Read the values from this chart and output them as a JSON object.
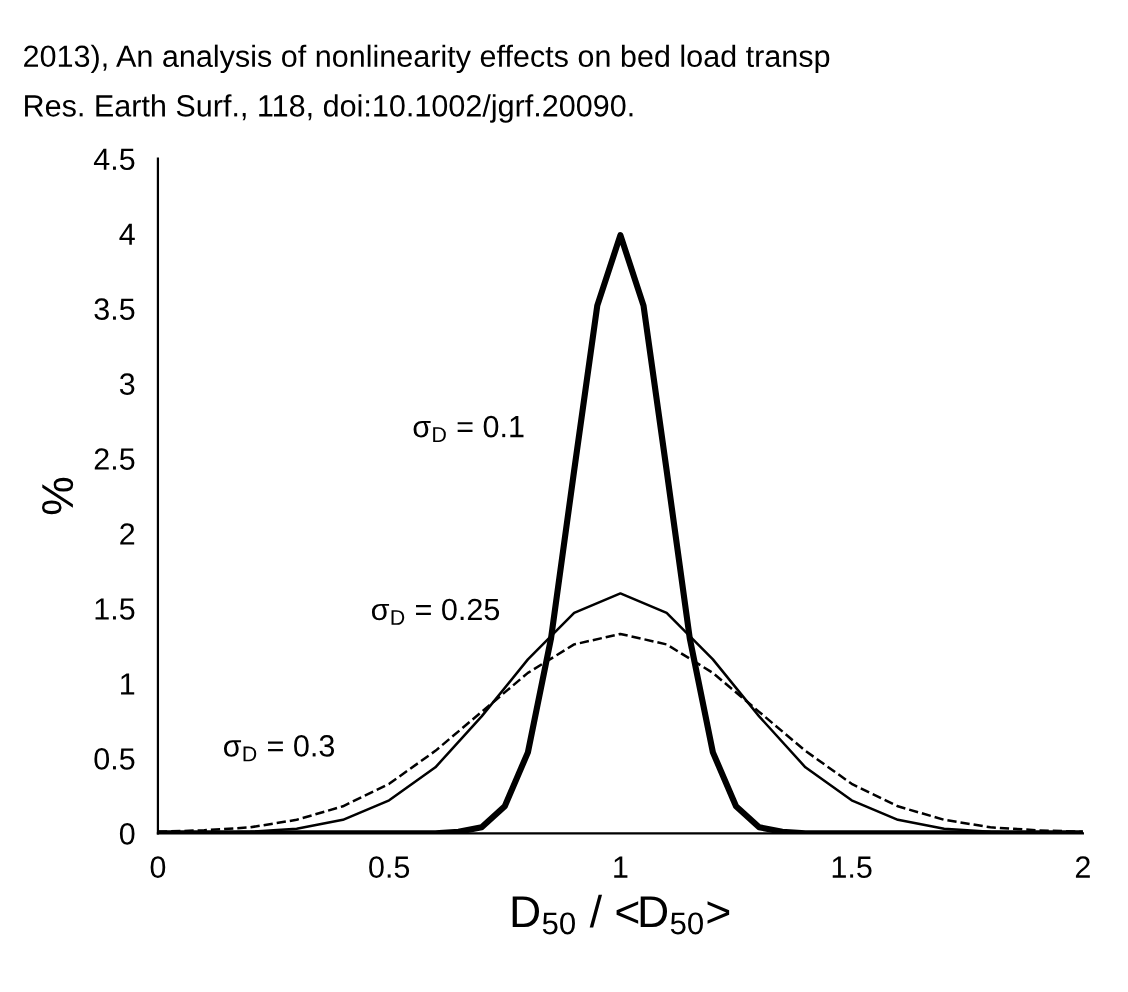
{
  "chart_data": {
    "type": "line",
    "xlabel": "D$_{50}$ / <D$_{50}$>",
    "ylabel": "%",
    "xlim": [
      0,
      2
    ],
    "xticks": [
      0,
      0.5,
      1,
      1.5,
      2
    ],
    "ylim": [
      0,
      4.5
    ],
    "yticks": [
      0,
      0.5,
      1,
      1.5,
      2,
      2.5,
      3,
      3.5,
      4,
      4.5
    ],
    "grid": false,
    "marker": "none",
    "series": [
      {
        "name": "σ$_{D}$ = 0.1",
        "color": "#000000",
        "line_style": "solid",
        "x": [
          0,
          0.6,
          0.65,
          0.7,
          0.75,
          0.8,
          0.85,
          0.9,
          0.95,
          1.0,
          1.05,
          1.1,
          1.15,
          1.2,
          1.25,
          1.3,
          1.35,
          1.4,
          2
        ],
        "values": [
          0,
          0,
          0.01,
          0.04,
          0.18,
          0.54,
          1.3,
          2.42,
          3.52,
          3.99,
          3.52,
          2.42,
          1.3,
          0.54,
          0.18,
          0.04,
          0.01,
          0,
          0
        ]
      },
      {
        "name": "σ$_{D}$ = 0.25",
        "color": "#000000",
        "line_style": "solid",
        "x": [
          0,
          0.1,
          0.2,
          0.3,
          0.4,
          0.5,
          0.6,
          0.7,
          0.8,
          0.9,
          1.0,
          1.1,
          1.2,
          1.3,
          1.4,
          1.5,
          1.6,
          1.7,
          1.8,
          1.9,
          2
        ],
        "values": [
          0,
          0,
          0.01,
          0.03,
          0.09,
          0.22,
          0.44,
          0.78,
          1.16,
          1.47,
          1.6,
          1.47,
          1.16,
          0.78,
          0.44,
          0.22,
          0.09,
          0.03,
          0.01,
          0,
          0
        ]
      },
      {
        "name": "σ$_{D}$ = 0.3",
        "color": "#000000",
        "line_style": "dashed",
        "x": [
          0,
          0.1,
          0.2,
          0.3,
          0.4,
          0.5,
          0.6,
          0.7,
          0.8,
          0.9,
          1.0,
          1.1,
          1.2,
          1.3,
          1.4,
          1.5,
          1.6,
          1.7,
          1.8,
          1.9,
          2
        ],
        "values": [
          0.01,
          0.02,
          0.04,
          0.09,
          0.18,
          0.33,
          0.55,
          0.81,
          1.07,
          1.26,
          1.33,
          1.26,
          1.07,
          0.81,
          0.55,
          0.33,
          0.18,
          0.09,
          0.04,
          0.02,
          0.01
        ]
      }
    ],
    "annotations": [
      "2013), An analysis of nonlinearity effects on bed load transp",
      "Res. Earth Surf., 118, doi:10.1002/jgrf.20090."
    ]
  }
}
